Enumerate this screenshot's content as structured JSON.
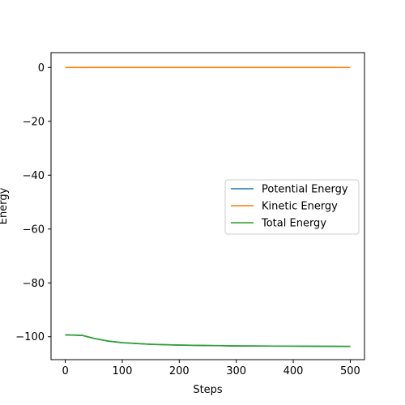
{
  "chart_data": {
    "type": "line",
    "xlabel": "Steps",
    "ylabel": "Energy",
    "xlim": [
      -25,
      525
    ],
    "ylim": [
      -108.5,
      5.5
    ],
    "xticks": [
      0,
      100,
      200,
      300,
      400,
      500
    ],
    "yticks": [
      0,
      -20,
      -40,
      -60,
      -80,
      -100
    ],
    "xtick_labels": [
      "0",
      "100",
      "200",
      "300",
      "400",
      "500"
    ],
    "ytick_labels": [
      "0",
      "−20",
      "−40",
      "−60",
      "−80",
      "−100"
    ],
    "grid": false,
    "legend_position": "center-right",
    "series": [
      {
        "name": "Potential Energy",
        "color": "#1f77b4",
        "x": [
          0,
          30,
          50,
          75,
          100,
          150,
          200,
          300,
          400,
          500
        ],
        "y": [
          -99.3,
          -99.5,
          -100.6,
          -101.6,
          -102.2,
          -102.8,
          -103.1,
          -103.4,
          -103.5,
          -103.6
        ]
      },
      {
        "name": "Kinetic Energy",
        "color": "#ff7f0e",
        "x": [
          0,
          100,
          200,
          300,
          400,
          500
        ],
        "y": [
          0,
          0,
          0,
          0,
          0,
          0
        ]
      },
      {
        "name": "Total Energy",
        "color": "#2ca02c",
        "x": [
          0,
          30,
          50,
          75,
          100,
          150,
          200,
          300,
          400,
          500
        ],
        "y": [
          -99.3,
          -99.5,
          -100.6,
          -101.6,
          -102.2,
          -102.8,
          -103.1,
          -103.4,
          -103.5,
          -103.6
        ]
      }
    ]
  }
}
